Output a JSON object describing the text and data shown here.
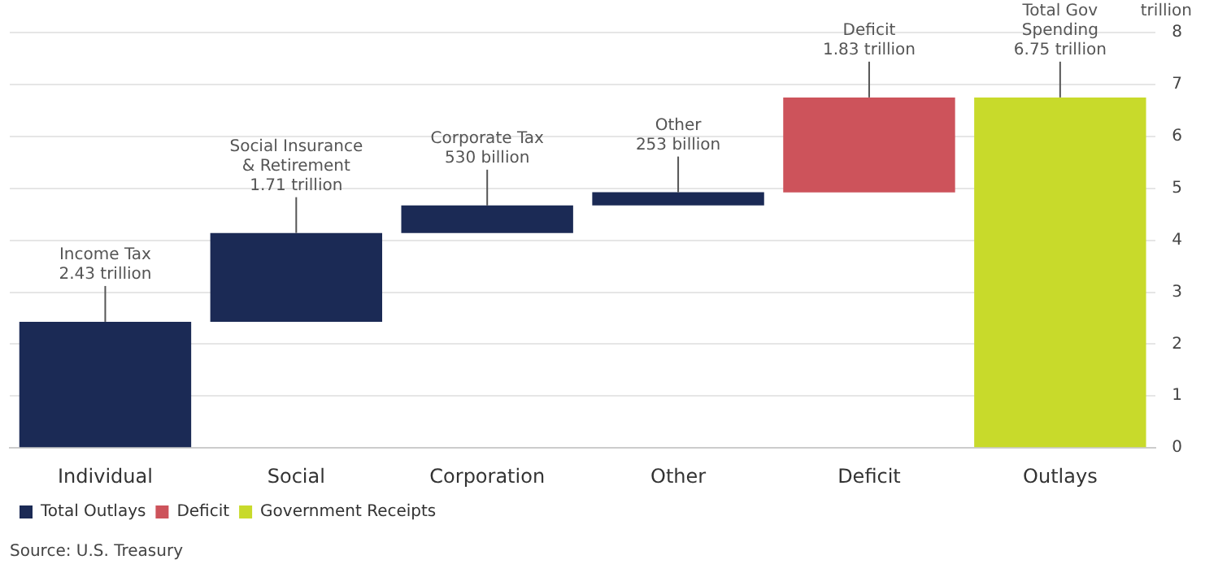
{
  "chart_data": {
    "type": "bar",
    "ylabel": "trillion",
    "categories": [
      "Individual",
      "Social",
      "Corporation",
      "Other",
      "Deficit",
      "Outlays"
    ],
    "series": [
      {
        "name": "Total Outlays",
        "color": "#1b2a55",
        "base": [
          0,
          2.43,
          4.14,
          4.67,
          null,
          null
        ],
        "values": [
          2.43,
          1.71,
          0.53,
          0.253,
          null,
          null
        ],
        "value_labels": [
          "Income Tax\n2.43 trillion",
          "Social Insurance\n& Retirement\n1.71 trillion",
          "Corporate Tax\n530 billion",
          "Other\n253 billion",
          null,
          null
        ]
      },
      {
        "name": "Deficit",
        "color": "#cd535b",
        "base": [
          null,
          null,
          null,
          null,
          4.92,
          null
        ],
        "values": [
          null,
          null,
          null,
          null,
          1.83,
          null
        ],
        "value_labels": [
          null,
          null,
          null,
          null,
          "Deficit\n1.83 trillion",
          null
        ]
      },
      {
        "name": "Government Receipts",
        "color": "#c8da2b",
        "base": [
          null,
          null,
          null,
          null,
          null,
          0
        ],
        "values": [
          null,
          null,
          null,
          null,
          null,
          6.75
        ],
        "value_labels": [
          null,
          null,
          null,
          null,
          null,
          "Total Gov\nSpending\n6.75 trillion"
        ]
      }
    ],
    "ylim": [
      0,
      8
    ],
    "yticks": [
      0,
      1,
      2,
      3,
      4,
      5,
      6,
      7,
      8
    ],
    "grid": "y",
    "legend": "bottom left",
    "annotations": [
      "Source: U.S. Treasury"
    ]
  }
}
